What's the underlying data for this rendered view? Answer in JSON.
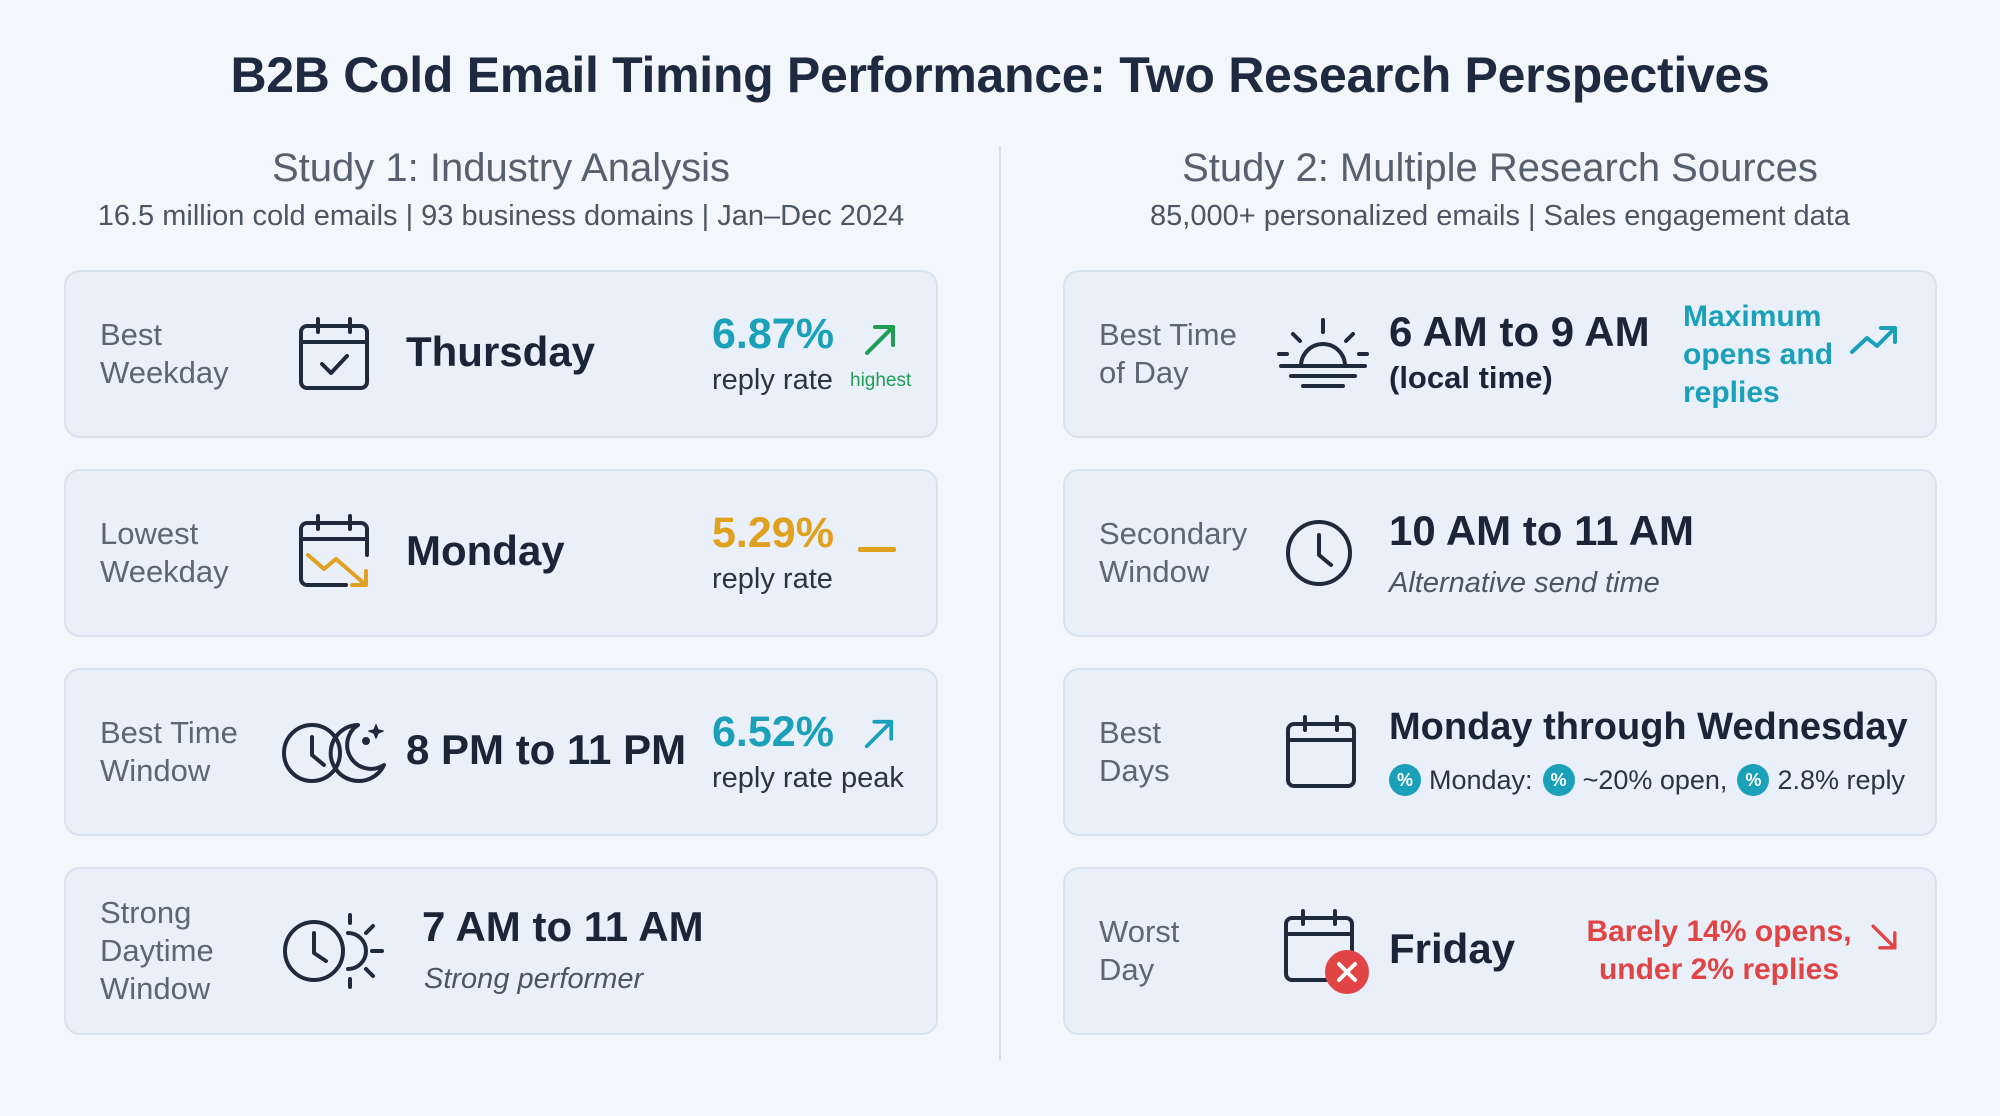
{
  "title": "B2B Cold Email Timing Performance: Two Research Perspectives",
  "colors": {
    "teal": "#1aa0b8",
    "orange": "#e0a020",
    "red": "#e04444",
    "green": "#1f9d55",
    "navy": "#1d2a40"
  },
  "study1": {
    "title": "Study 1: Industry Analysis",
    "subtitle": "16.5 million cold emails | 93 business domains | Jan–Dec 2024",
    "cards": [
      {
        "label": "Best\nWeekday",
        "icon": "calendar-check-icon",
        "value": "Thursday",
        "pct": "6.87%",
        "pct_label": "reply rate",
        "note": "highest",
        "trend": "up-arrow-icon"
      },
      {
        "label": "Lowest\nWeekday",
        "icon": "calendar-trend-down-icon",
        "value": "Monday",
        "pct": "5.29%",
        "pct_label": "reply rate",
        "trend": "dash-icon"
      },
      {
        "label": "Best Time\nWindow",
        "icon": "clock-moon-icon",
        "value": "8 PM to 11 PM",
        "pct": "6.52%",
        "pct_label": "reply rate peak",
        "trend": "up-arrow-icon"
      },
      {
        "label": "Strong\nDaytime\nWindow",
        "icon": "clock-sun-icon",
        "value": "7 AM to 11 AM",
        "sub": "Strong performer"
      }
    ]
  },
  "study2": {
    "title": "Study 2: Multiple Research Sources",
    "subtitle": "85,000+ personalized emails | Sales engagement data",
    "cards": [
      {
        "label": "Best Time\nof Day",
        "icon": "sunrise-icon",
        "value": "6 AM to 9 AM",
        "sub": "(local time)",
        "note": "Maximum\nopens and\nreplies",
        "trend": "trending-up-icon"
      },
      {
        "label": "Secondary\nWindow",
        "icon": "clock-icon",
        "value": "10 AM to 11 AM",
        "sub": "Alternative send time"
      },
      {
        "label": "Best\nDays",
        "icon": "calendar-icon",
        "value": "Monday through Wednesday",
        "badges": [
          "Monday:",
          "~20% open,",
          "2.8% reply"
        ]
      },
      {
        "label": "Worst\nDay",
        "icon": "calendar-x-icon",
        "value": "Friday",
        "note": "Barely 14% opens,\nunder 2% replies",
        "trend": "down-arrow-icon"
      }
    ]
  }
}
